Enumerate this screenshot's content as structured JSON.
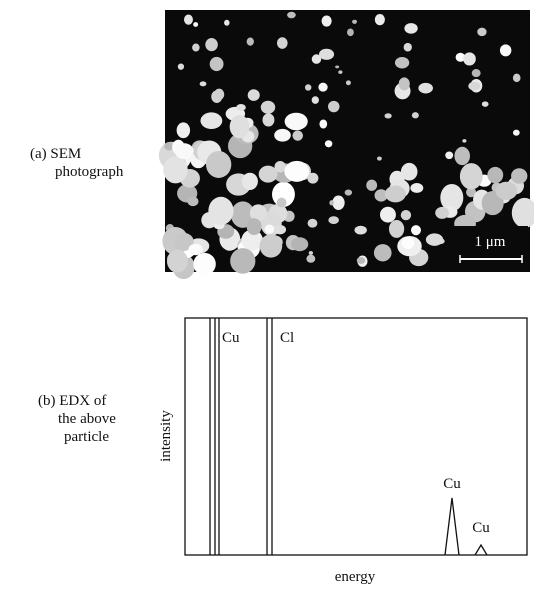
{
  "sem": {
    "label_lines": [
      "(a) SEM",
      "photograph"
    ],
    "scale_bar": "1 μm"
  },
  "edx": {
    "label_lines": [
      "(b) EDX of",
      "the above",
      "particle"
    ],
    "y_axis": "intensity",
    "x_axis": "energy",
    "peaks": [
      "Cu",
      "Cl",
      "Cu",
      "Cu"
    ]
  }
}
